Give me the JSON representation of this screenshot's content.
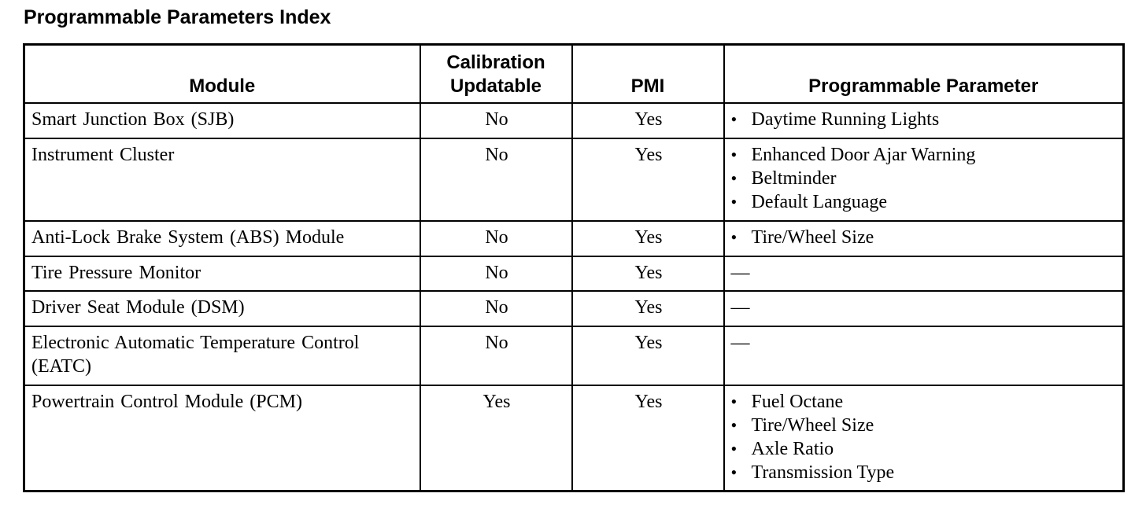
{
  "page": {
    "title": "Programmable Parameters Index"
  },
  "table": {
    "bullet_char": "•",
    "columns": [
      "Module",
      "Calibration Updatable",
      "PMI",
      "Programmable Parameter"
    ],
    "rows": [
      {
        "module": "Smart Junction Box (SJB)",
        "calibration_updatable": "No",
        "pmi": "Yes",
        "parameters": [
          "Daytime Running Lights"
        ]
      },
      {
        "module": "Instrument Cluster",
        "calibration_updatable": "No",
        "pmi": "Yes",
        "parameters": [
          "Enhanced Door Ajar Warning",
          "Beltminder",
          "Default Language"
        ]
      },
      {
        "module": "Anti-Lock Brake System (ABS) Module",
        "calibration_updatable": "No",
        "pmi": "Yes",
        "parameters": [
          "Tire/Wheel Size"
        ]
      },
      {
        "module": "Tire Pressure Monitor",
        "calibration_updatable": "No",
        "pmi": "Yes",
        "parameters_empty": "—"
      },
      {
        "module": "Driver Seat Module (DSM)",
        "calibration_updatable": "No",
        "pmi": "Yes",
        "parameters_empty": "—"
      },
      {
        "module": "Electronic Automatic Temperature Control (EATC)",
        "calibration_updatable": "No",
        "pmi": "Yes",
        "parameters_empty": "—"
      },
      {
        "module": "Powertrain Control Module (PCM)",
        "calibration_updatable": "Yes",
        "pmi": "Yes",
        "parameters": [
          "Fuel Octane",
          "Tire/Wheel Size",
          "Axle Ratio",
          "Transmission Type"
        ]
      }
    ]
  }
}
